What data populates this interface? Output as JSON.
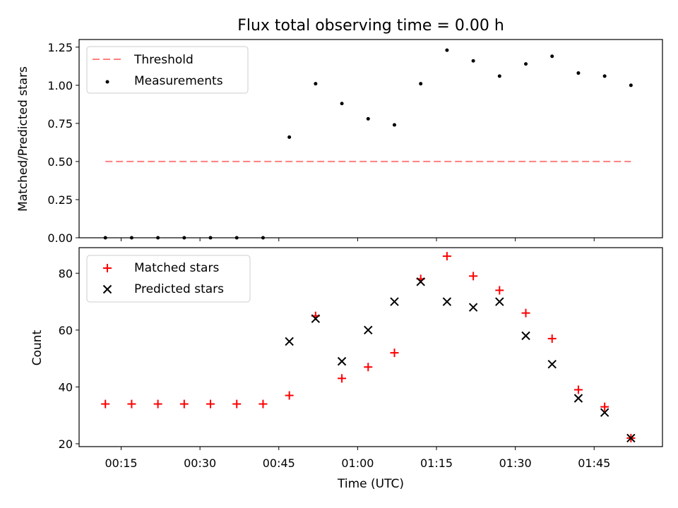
{
  "chart_data": [
    {
      "type": "scatter",
      "title": "Flux total observing time = 0.00 h",
      "xlabel": "",
      "ylabel": "Matched/Predicted stars",
      "ylim": [
        0,
        1.3
      ],
      "yticks": [
        "0.00",
        "0.25",
        "0.50",
        "0.75",
        "1.00",
        "1.25"
      ],
      "ytick_values": [
        0,
        0.25,
        0.5,
        0.75,
        1.0,
        1.25
      ],
      "legend_position": "top-left",
      "threshold": {
        "name": "Threshold",
        "value": 0.5,
        "color": "#ff7f7f",
        "x_start": "00:12",
        "x_end": "01:52"
      },
      "series": [
        {
          "name": "Measurements",
          "color": "#000000",
          "x": [
            "00:12",
            "00:17",
            "00:22",
            "00:27",
            "00:32",
            "00:37",
            "00:42",
            "00:47",
            "00:52",
            "00:57",
            "01:02",
            "01:07",
            "01:12",
            "01:17",
            "01:22",
            "01:27",
            "01:32",
            "01:37",
            "01:42",
            "01:47",
            "01:52"
          ],
          "y": [
            0,
            0,
            0,
            0,
            0,
            0,
            0,
            0.66,
            1.01,
            0.88,
            0.78,
            0.74,
            1.01,
            1.23,
            1.16,
            1.06,
            1.14,
            1.19,
            1.08,
            1.06,
            1.0
          ]
        }
      ]
    },
    {
      "type": "scatter",
      "title": "",
      "xlabel": "Time (UTC)",
      "ylabel": "Count",
      "ylim": [
        19,
        89
      ],
      "yticks": [
        "20",
        "40",
        "60",
        "80"
      ],
      "ytick_values": [
        20,
        40,
        60,
        80
      ],
      "xlim": [
        "00:07",
        "01:58"
      ],
      "xticks": [
        "00:15",
        "00:30",
        "00:45",
        "01:00",
        "01:15",
        "01:30",
        "01:45"
      ],
      "legend_position": "top-left",
      "series": [
        {
          "name": "Matched stars",
          "color": "#ff0000",
          "marker": "plus",
          "x": [
            "00:12",
            "00:17",
            "00:22",
            "00:27",
            "00:32",
            "00:37",
            "00:42",
            "00:47",
            "00:52",
            "00:57",
            "01:02",
            "01:07",
            "01:12",
            "01:17",
            "01:22",
            "01:27",
            "01:32",
            "01:37",
            "01:42",
            "01:47",
            "01:52"
          ],
          "y": [
            34,
            34,
            34,
            34,
            34,
            34,
            34,
            37,
            65,
            43,
            47,
            52,
            78,
            86,
            79,
            74,
            66,
            57,
            39,
            33,
            22
          ]
        },
        {
          "name": "Predicted stars",
          "color": "#000000",
          "marker": "x",
          "x": [
            "00:47",
            "00:52",
            "00:57",
            "01:02",
            "01:07",
            "01:12",
            "01:17",
            "01:22",
            "01:27",
            "01:32",
            "01:37",
            "01:42",
            "01:47",
            "01:52"
          ],
          "y": [
            56,
            64,
            49,
            60,
            70,
            77,
            70,
            68,
            70,
            58,
            48,
            36,
            31,
            22
          ]
        }
      ]
    }
  ]
}
